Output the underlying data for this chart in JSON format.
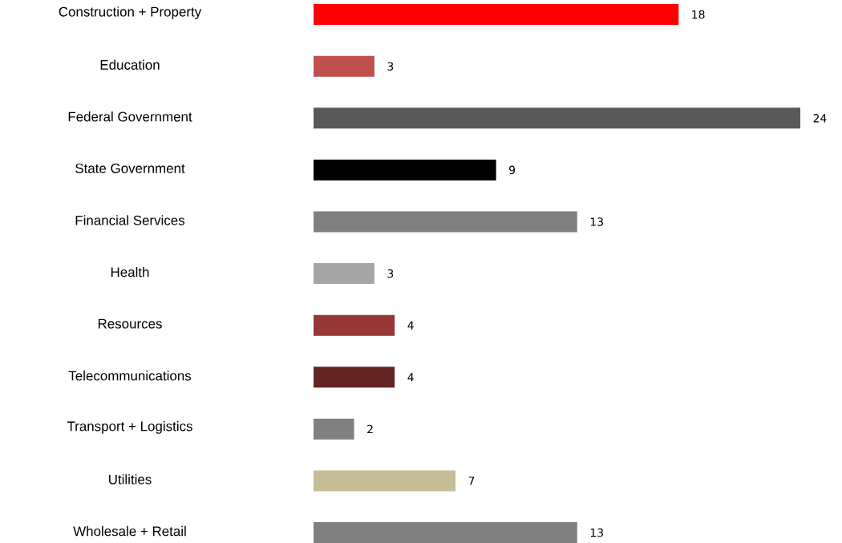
{
  "chart_data": {
    "type": "bar",
    "orientation": "horizontal",
    "data_labels": true,
    "categories": [
      "Construction + Property",
      "Education",
      "Federal Government",
      "State Government",
      "Financial Services",
      "Health",
      "Resources",
      "Telecommunications",
      "Transport + Logistics",
      "Utilities",
      "Wholesale + Retail"
    ],
    "values": [
      18,
      3,
      24,
      9,
      13,
      3,
      4,
      4,
      2,
      7,
      13
    ],
    "colors": [
      "#ff0000",
      "#c0504d",
      "#595959",
      "#000000",
      "#808080",
      "#a6a6a6",
      "#953735",
      "#632523",
      "#808080",
      "#c4bd97",
      "#808080"
    ]
  }
}
